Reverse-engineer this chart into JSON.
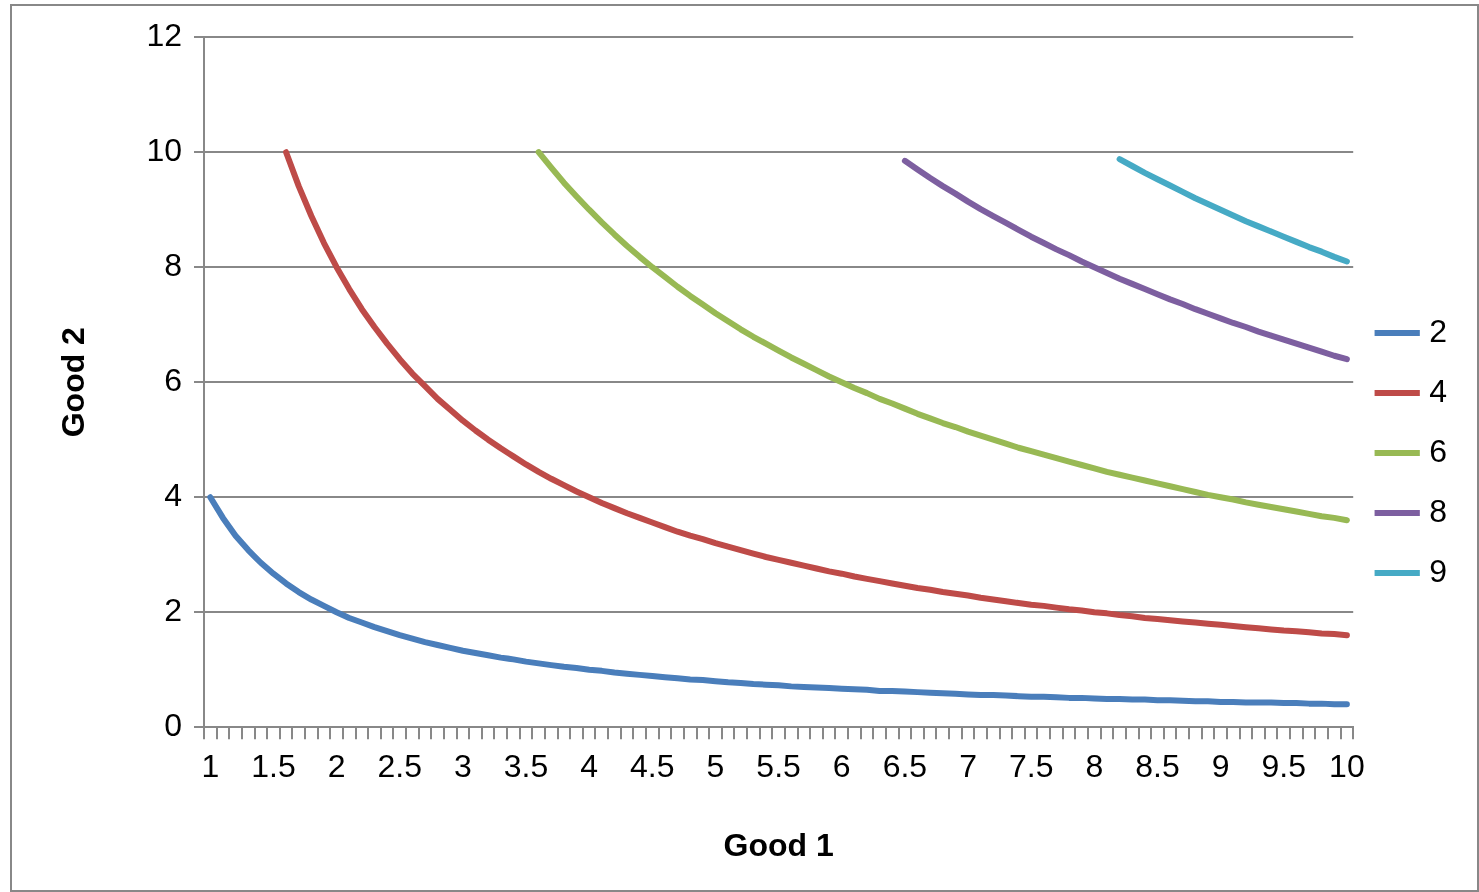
{
  "chart_data": {
    "type": "line",
    "xlabel": "Good 1",
    "ylabel": "Good 2",
    "categories": [
      "1",
      null,
      null,
      null,
      null,
      "1.5",
      null,
      null,
      null,
      null,
      "2",
      null,
      null,
      null,
      null,
      "2.5",
      null,
      null,
      null,
      null,
      "3",
      null,
      null,
      null,
      null,
      "3.5",
      null,
      null,
      null,
      null,
      "4",
      null,
      null,
      null,
      null,
      "4.5",
      null,
      null,
      null,
      null,
      "5",
      null,
      null,
      null,
      null,
      "5.5",
      null,
      null,
      null,
      null,
      "6",
      null,
      null,
      null,
      null,
      "6.5",
      null,
      null,
      null,
      null,
      "7",
      null,
      null,
      null,
      null,
      "7.5",
      null,
      null,
      null,
      null,
      "8",
      null,
      null,
      null,
      null,
      "8.5",
      null,
      null,
      null,
      null,
      "9",
      null,
      null,
      null,
      null,
      "9.5",
      null,
      null,
      null,
      null,
      "10"
    ],
    "series": [
      {
        "name": "2",
        "color": "#4a7ebb",
        "values": [
          4,
          3.64,
          3.33,
          3.08,
          2.86,
          2.67,
          2.5,
          2.35,
          2.22,
          2.11,
          2,
          1.9,
          1.82,
          1.74,
          1.67,
          1.6,
          1.54,
          1.48,
          1.43,
          1.38,
          1.33,
          1.29,
          1.25,
          1.21,
          1.18,
          1.14,
          1.11,
          1.08,
          1.05,
          1.03,
          1,
          0.98,
          0.95,
          0.93,
          0.91,
          0.89,
          0.87,
          0.85,
          0.83,
          0.82,
          0.8,
          0.78,
          0.77,
          0.75,
          0.74,
          0.73,
          0.71,
          0.7,
          0.69,
          0.68,
          0.67,
          0.66,
          0.65,
          0.63,
          0.63,
          0.62,
          0.61,
          0.6,
          0.59,
          0.58,
          0.57,
          0.56,
          0.56,
          0.55,
          0.54,
          0.53,
          0.53,
          0.52,
          0.51,
          0.51,
          0.5,
          0.49,
          0.49,
          0.48,
          0.48,
          0.47,
          0.47,
          0.46,
          0.45,
          0.45,
          0.44,
          0.44,
          0.43,
          0.43,
          0.43,
          0.42,
          0.42,
          0.41,
          0.41,
          0.4,
          0.4
        ]
      },
      {
        "name": "4",
        "color": "#be4b48",
        "values": [
          null,
          null,
          null,
          null,
          null,
          null,
          10,
          9.41,
          8.89,
          8.42,
          8,
          7.62,
          7.27,
          6.96,
          6.67,
          6.4,
          6.15,
          5.93,
          5.71,
          5.52,
          5.33,
          5.16,
          5,
          4.85,
          4.71,
          4.57,
          4.44,
          4.32,
          4.21,
          4.1,
          4,
          3.9,
          3.81,
          3.72,
          3.64,
          3.56,
          3.48,
          3.4,
          3.33,
          3.27,
          3.2,
          3.14,
          3.08,
          3.02,
          2.96,
          2.91,
          2.86,
          2.81,
          2.76,
          2.71,
          2.67,
          2.62,
          2.58,
          2.54,
          2.5,
          2.46,
          2.42,
          2.39,
          2.35,
          2.32,
          2.29,
          2.25,
          2.22,
          2.19,
          2.16,
          2.13,
          2.11,
          2.08,
          2.05,
          2.03,
          2,
          1.98,
          1.95,
          1.93,
          1.9,
          1.88,
          1.86,
          1.84,
          1.82,
          1.8,
          1.78,
          1.76,
          1.74,
          1.72,
          1.7,
          1.68,
          1.67,
          1.65,
          1.63,
          1.62,
          1.6
        ]
      },
      {
        "name": "6",
        "color": "#98b954",
        "values": [
          null,
          null,
          null,
          null,
          null,
          null,
          null,
          null,
          null,
          null,
          null,
          null,
          null,
          null,
          null,
          null,
          null,
          null,
          null,
          null,
          null,
          null,
          null,
          null,
          null,
          null,
          10,
          9.73,
          9.47,
          9.23,
          9,
          8.78,
          8.57,
          8.37,
          8.18,
          8,
          7.83,
          7.66,
          7.5,
          7.35,
          7.2,
          7.06,
          6.92,
          6.79,
          6.67,
          6.55,
          6.43,
          6.32,
          6.21,
          6.1,
          6,
          5.9,
          5.81,
          5.71,
          5.63,
          5.54,
          5.45,
          5.37,
          5.29,
          5.22,
          5.14,
          5.07,
          5,
          4.93,
          4.86,
          4.8,
          4.74,
          4.68,
          4.62,
          4.56,
          4.5,
          4.44,
          4.39,
          4.34,
          4.29,
          4.24,
          4.19,
          4.14,
          4.09,
          4.04,
          4,
          3.96,
          3.91,
          3.87,
          3.83,
          3.79,
          3.75,
          3.71,
          3.67,
          3.64,
          3.6
        ]
      },
      {
        "name": "8",
        "color": "#7d5fa0",
        "values": [
          null,
          null,
          null,
          null,
          null,
          null,
          null,
          null,
          null,
          null,
          null,
          null,
          null,
          null,
          null,
          null,
          null,
          null,
          null,
          null,
          null,
          null,
          null,
          null,
          null,
          null,
          null,
          null,
          null,
          null,
          null,
          null,
          null,
          null,
          null,
          null,
          null,
          null,
          null,
          null,
          null,
          null,
          null,
          null,
          null,
          null,
          null,
          null,
          null,
          null,
          null,
          null,
          null,
          null,
          null,
          9.85,
          9.7,
          9.55,
          9.41,
          9.28,
          9.14,
          9.01,
          8.89,
          8.77,
          8.65,
          8.53,
          8.42,
          8.31,
          8.21,
          8.1,
          8,
          7.9,
          7.8,
          7.71,
          7.62,
          7.53,
          7.44,
          7.36,
          7.27,
          7.19,
          7.11,
          7.03,
          6.96,
          6.88,
          6.81,
          6.74,
          6.67,
          6.6,
          6.53,
          6.46,
          6.4
        ]
      },
      {
        "name": "9",
        "color": "#46aac5",
        "values": [
          null,
          null,
          null,
          null,
          null,
          null,
          null,
          null,
          null,
          null,
          null,
          null,
          null,
          null,
          null,
          null,
          null,
          null,
          null,
          null,
          null,
          null,
          null,
          null,
          null,
          null,
          null,
          null,
          null,
          null,
          null,
          null,
          null,
          null,
          null,
          null,
          null,
          null,
          null,
          null,
          null,
          null,
          null,
          null,
          null,
          null,
          null,
          null,
          null,
          null,
          null,
          null,
          null,
          null,
          null,
          null,
          null,
          null,
          null,
          null,
          null,
          null,
          null,
          null,
          null,
          null,
          null,
          null,
          null,
          null,
          null,
          null,
          9.88,
          9.76,
          9.64,
          9.53,
          9.42,
          9.31,
          9.2,
          9.1,
          9,
          8.9,
          8.8,
          8.71,
          8.62,
          8.53,
          8.44,
          8.35,
          8.27,
          8.18,
          8.1
        ]
      }
    ],
    "ylim": [
      0,
      12
    ],
    "yticks": [
      0,
      2,
      4,
      6,
      8,
      10,
      12
    ],
    "grid": "y",
    "legend": "right",
    "marker": "none"
  }
}
